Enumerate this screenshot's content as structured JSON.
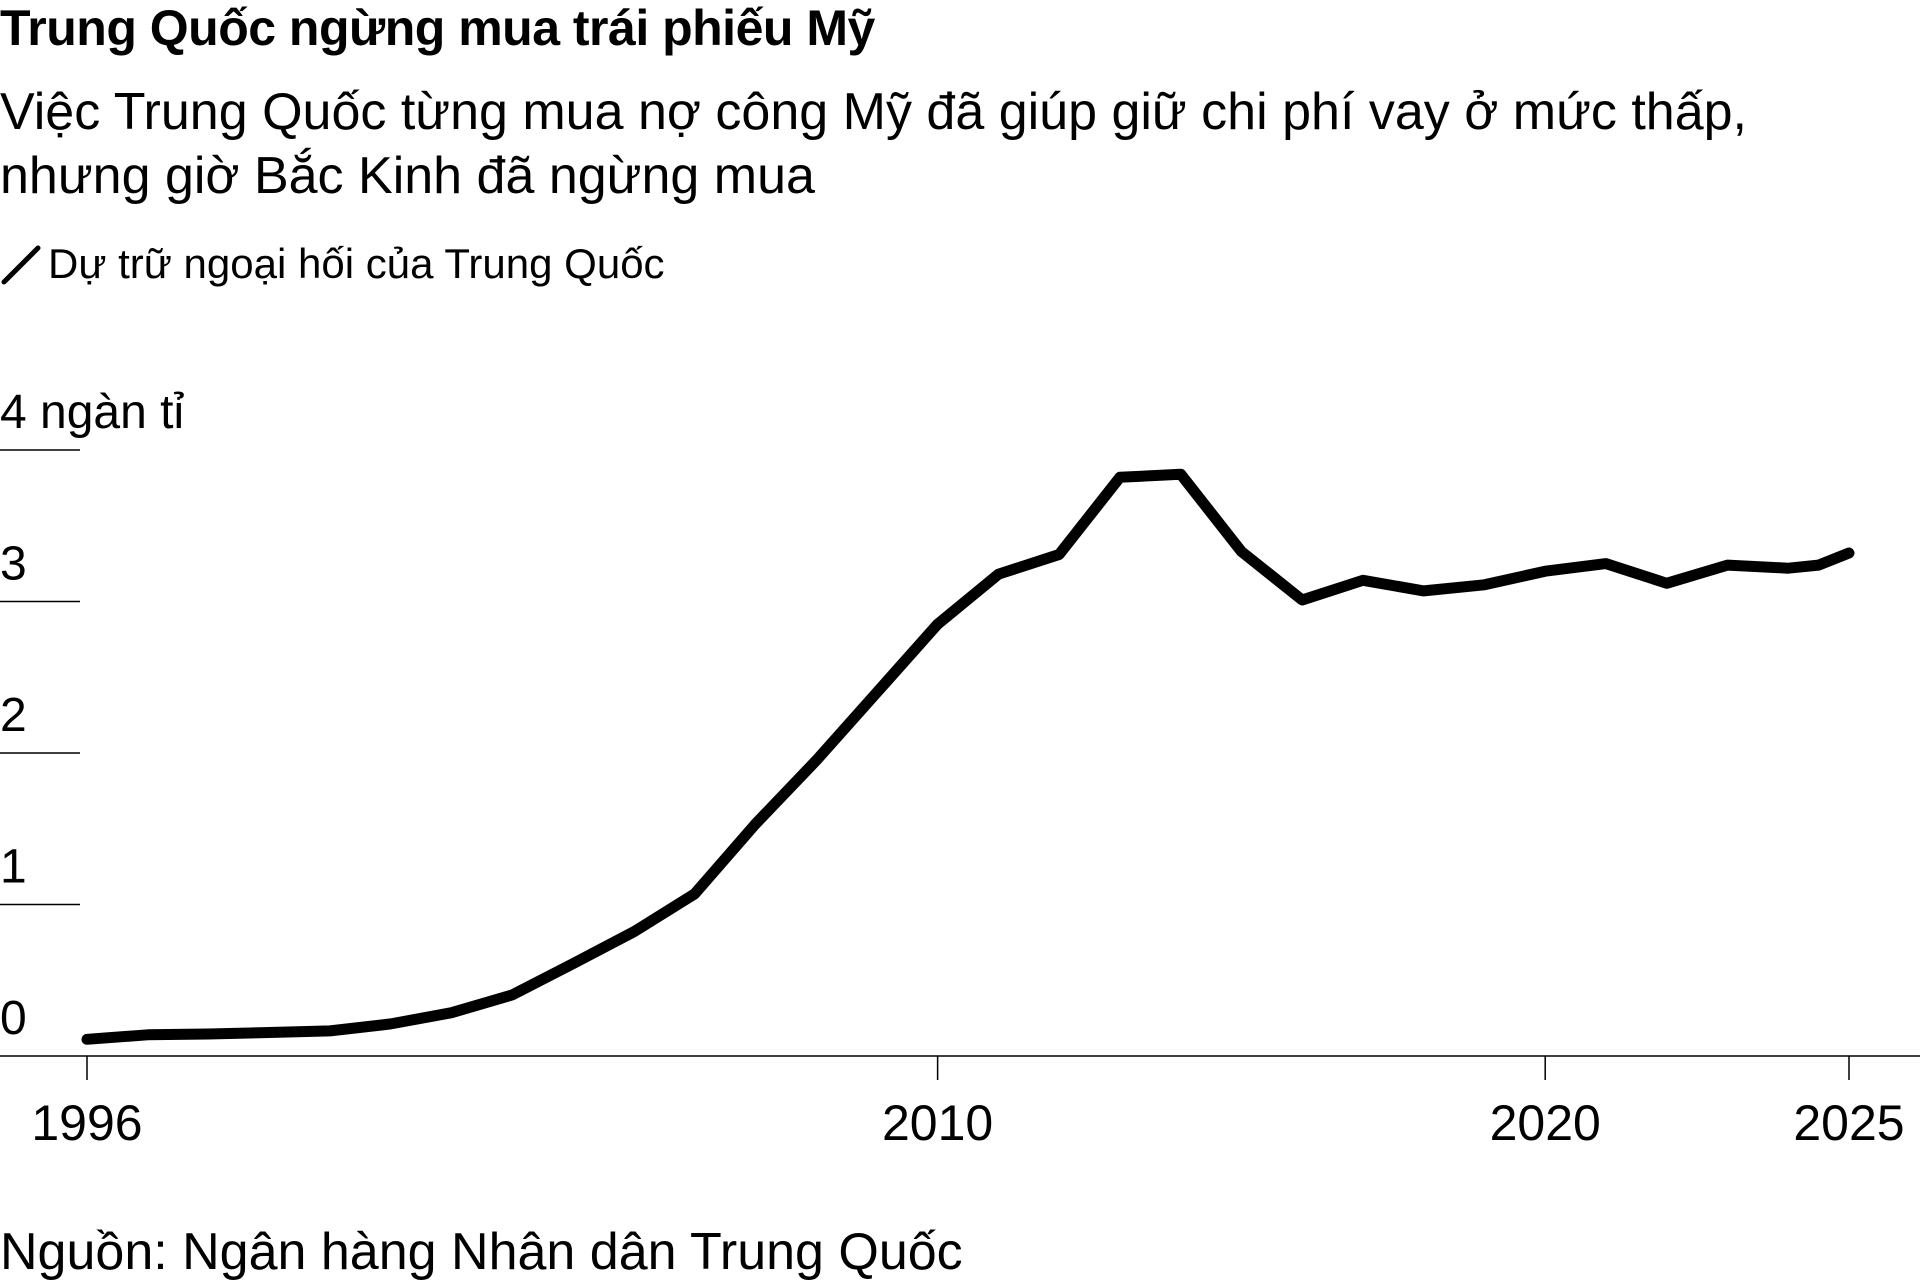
{
  "chart_data": {
    "type": "line",
    "title": "Trung Quốc ngừng mua trái phiếu Mỹ",
    "subtitle": "Việc Trung Quốc từng mua nợ công Mỹ đã giúp giữ chi phí vay ở mức thấp, nhưng giờ Bắc Kinh đã ngừng mua",
    "unit_label": "4 ngàn tỉ",
    "y_ticks": [
      0,
      1,
      2,
      3,
      4
    ],
    "y_tick_labels": [
      "0",
      "1",
      "2",
      "3",
      "4 ngàn tỉ"
    ],
    "ylim": [
      0,
      4
    ],
    "x_ticks": [
      1996,
      2010,
      2020,
      2025
    ],
    "x_tick_labels": [
      "1996",
      "2010",
      "2020",
      "2025"
    ],
    "xlim": [
      1996,
      2025
    ],
    "grid": "horizontal",
    "legend_position": "top-left",
    "series": [
      {
        "name": "Dự trữ ngoại hối của Trung Quốc",
        "color": "#000000",
        "x": [
          1996,
          1997,
          1998,
          1999,
          2000,
          2001,
          2002,
          2003,
          2004,
          2005,
          2006,
          2007,
          2008,
          2009,
          2010,
          2011,
          2012,
          2013,
          2014,
          2015,
          2016,
          2017,
          2018,
          2019,
          2020,
          2021,
          2022,
          2023,
          2024,
          2024.5,
          2025
        ],
        "y": [
          0.11,
          0.14,
          0.145,
          0.155,
          0.166,
          0.212,
          0.286,
          0.403,
          0.61,
          0.82,
          1.07,
          1.53,
          1.95,
          2.4,
          2.85,
          3.18,
          3.31,
          3.82,
          3.84,
          3.33,
          3.01,
          3.14,
          3.07,
          3.11,
          3.2,
          3.25,
          3.12,
          3.24,
          3.22,
          3.24,
          3.32
        ]
      }
    ]
  },
  "source": "Nguồn: Ngân hàng Nhân dân Trung Quốc"
}
